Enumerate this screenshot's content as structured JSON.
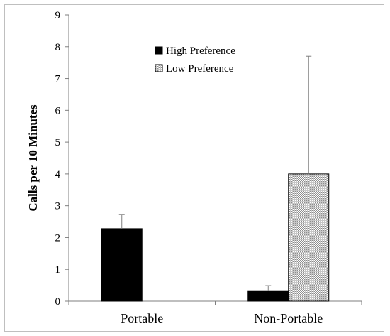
{
  "chart_data": {
    "type": "bar",
    "title": "",
    "xlabel": "",
    "ylabel": "Calls per 10 Minutes",
    "ylim": [
      0,
      9
    ],
    "yticks": [
      0,
      1,
      2,
      3,
      4,
      5,
      6,
      7,
      8,
      9
    ],
    "categories": [
      "Portable",
      "Non-Portable"
    ],
    "series": [
      {
        "name": "High Preference",
        "values": [
          2.28,
          0.33
        ],
        "error_upper": [
          0.45,
          0.16
        ],
        "color": "#000000",
        "pattern": "solid"
      },
      {
        "name": "Low Preference",
        "values": [
          null,
          4.0
        ],
        "error_upper": [
          null,
          3.7
        ],
        "color": "#d9d9d9",
        "pattern": "dotted"
      }
    ],
    "grid": false,
    "legend_position": "top-center"
  }
}
